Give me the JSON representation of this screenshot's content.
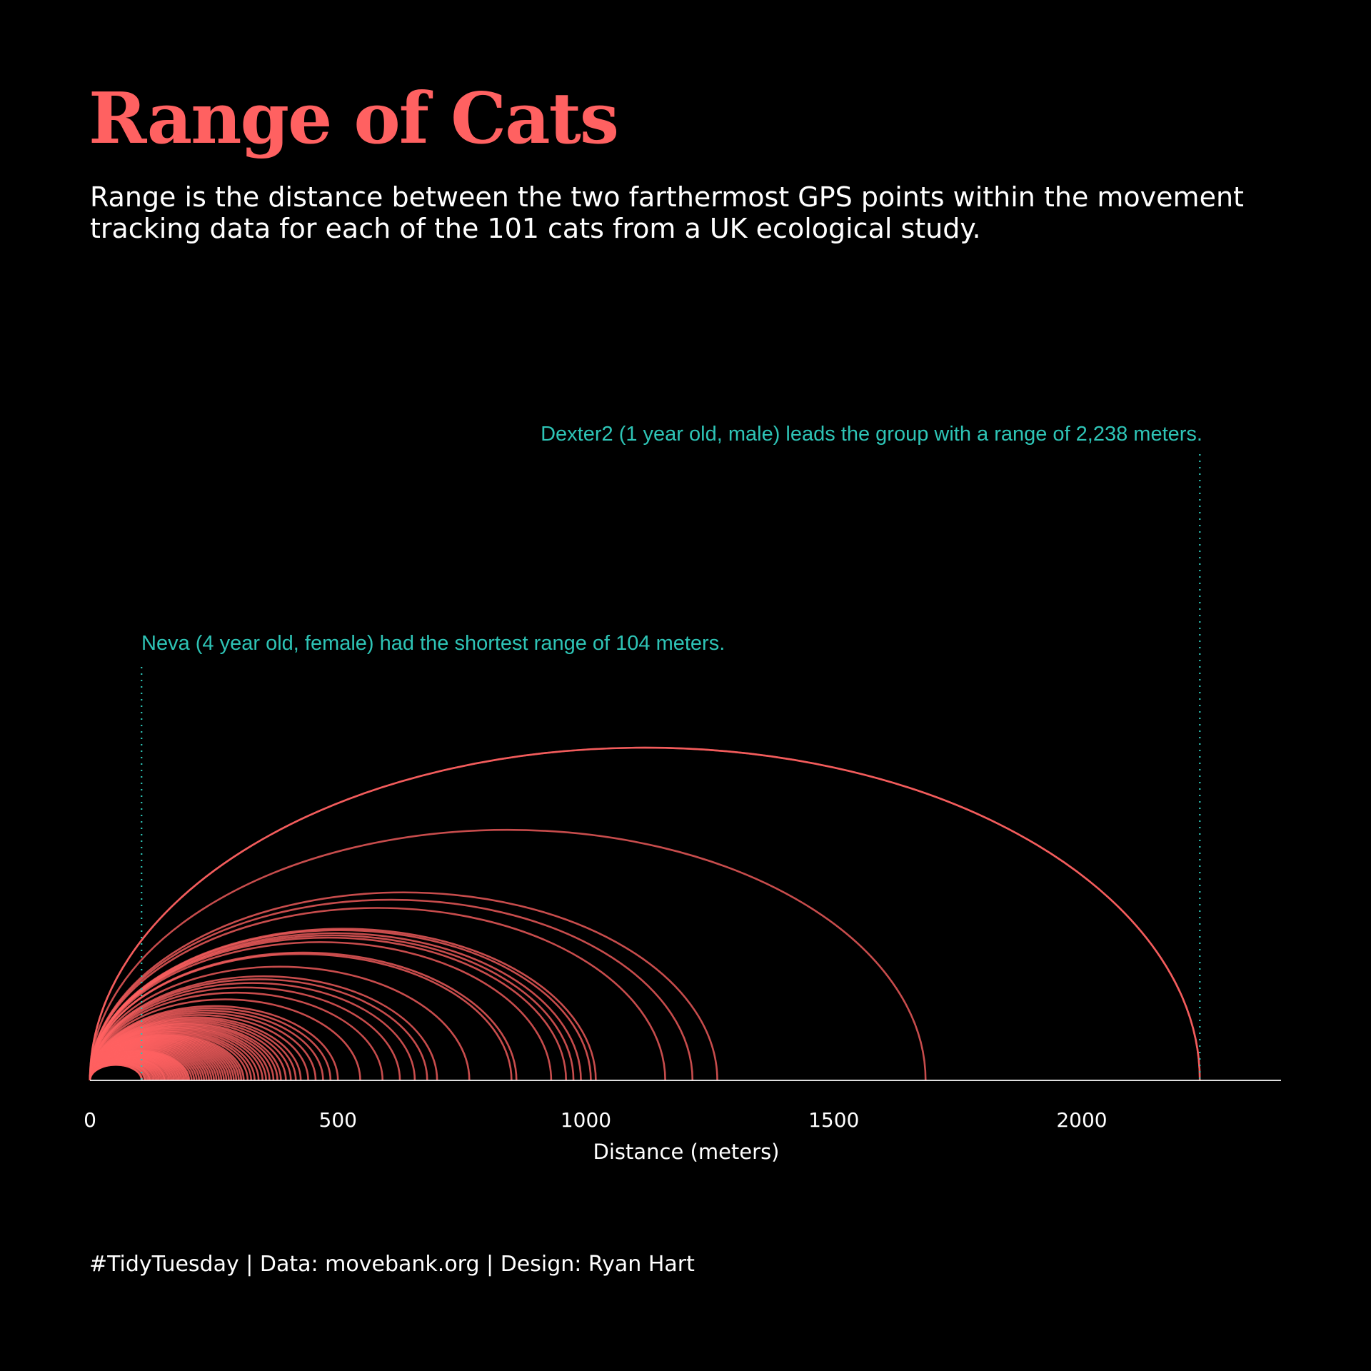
{
  "header": {
    "title": "Range of Cats",
    "subtitle": "Range is the distance between the two farthermost GPS points within the movement tracking data for each of the 101 cats from a UK ecological study."
  },
  "caption": "#TidyTuesday | Data: movebank.org | Design: Ryan Hart",
  "colors": {
    "background": "#000000",
    "arc": "#ff6161",
    "annotation": "#2ec4b6",
    "text": "#ffffff"
  },
  "chart_data": {
    "type": "arc",
    "xlabel": "Distance (meters)",
    "xlim": [
      0,
      2400
    ],
    "xticks": [
      0,
      500,
      1000,
      1500,
      2000
    ],
    "grid": false,
    "ranges_m": [
      104,
      105,
      110,
      112,
      115,
      118,
      120,
      122,
      125,
      128,
      130,
      133,
      135,
      138,
      140,
      143,
      145,
      148,
      150,
      152,
      155,
      158,
      160,
      163,
      165,
      168,
      170,
      173,
      175,
      178,
      180,
      183,
      185,
      188,
      190,
      193,
      195,
      198,
      200,
      205,
      210,
      215,
      220,
      225,
      230,
      235,
      240,
      245,
      250,
      255,
      260,
      265,
      270,
      275,
      280,
      285,
      290,
      295,
      300,
      305,
      310,
      318,
      325,
      332,
      340,
      348,
      355,
      362,
      370,
      378,
      385,
      395,
      405,
      415,
      425,
      440,
      455,
      470,
      485,
      500,
      545,
      590,
      625,
      655,
      680,
      700,
      765,
      850,
      860,
      930,
      960,
      975,
      990,
      1010,
      1020,
      1160,
      1215,
      1265,
      1685,
      2238,
      2238
    ],
    "annotations": [
      {
        "text": "Dexter2 (1 year old, male) leads the group with a range of 2,238 meters.",
        "x": 2238
      },
      {
        "text": "Neva (4 year old, female) had the shortest range of 104 meters.",
        "x": 104
      }
    ]
  }
}
